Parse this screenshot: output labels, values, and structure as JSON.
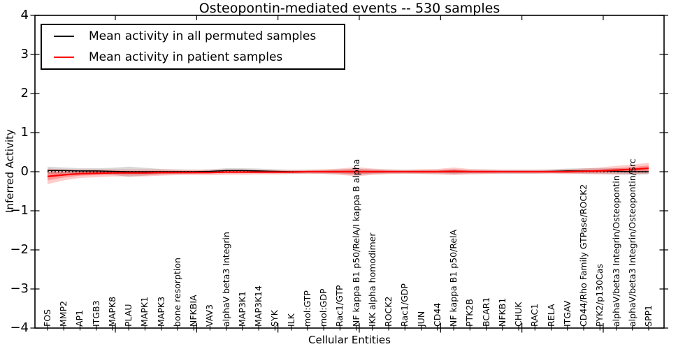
{
  "figure": {
    "title": "Osteopontin-mediated events -- 530 samples",
    "xlabel": "Cellular Entities",
    "ylabel": "Inferred Activity"
  },
  "legend": {
    "items": [
      {
        "label": "Mean activity in all permuted samples",
        "color": "#000000"
      },
      {
        "label": "Mean activity in patient samples",
        "color": "#ff0000"
      }
    ]
  },
  "chart_data": {
    "type": "line",
    "title": "Osteopontin-mediated events -- 530 samples",
    "xlabel": "Cellular Entities",
    "ylabel": "Inferred Activity",
    "ylim": [
      -4,
      4
    ],
    "grid": false,
    "legend_position": "upper left",
    "yticks": [
      {
        "value": 4,
        "label": "4"
      },
      {
        "value": 3,
        "label": "3"
      },
      {
        "value": 2,
        "label": "2"
      },
      {
        "value": 1,
        "label": "1"
      },
      {
        "value": 0,
        "label": "0"
      },
      {
        "value": -1,
        "label": "−1"
      },
      {
        "value": -2,
        "label": "−2"
      },
      {
        "value": -3,
        "label": "−3"
      },
      {
        "value": -4,
        "label": "−4"
      }
    ],
    "categories": [
      "FOS",
      "MMP2",
      "AP1",
      "ITGB3",
      "MAPK8",
      "PLAU",
      "MAPK1",
      "MAPK3",
      "bone resorption",
      "NFKBIA",
      "VAV3",
      "alphaV beta3 Integrin",
      "MAP3K1",
      "MAP3K14",
      "SYK",
      "ILK",
      "mol:GTP",
      "mol:GDP",
      "Rac1/GTP",
      "NF kappa B1 p50/RelA/I kappa B alpha",
      "IKK alpha homodimer",
      "ROCK2",
      "Rac1/GDP",
      "JUN",
      "CD44",
      "NF kappa B1 p50/RelA",
      "PTK2B",
      "BCAR1",
      "NFKB1",
      "CHUK",
      "RAC1",
      "RELA",
      "ITGAV",
      "CD44/Rho Family GTPase/ROCK2",
      "PYK2/p130Cas",
      "alphaV/beta3 Integrin/Osteopontin",
      "alphaV/beta3 Integrin/Osteopontin/Src",
      "SPP1"
    ],
    "reference_line": {
      "y": 0,
      "style": "dotted",
      "color": "#000000"
    },
    "series": [
      {
        "name": "Mean activity in all permuted samples",
        "color": "#000000",
        "band_color": "#000000",
        "band_opacity": 0.15,
        "values": [
          0.03,
          0.03,
          0.02,
          0.02,
          0.01,
          0,
          0,
          0,
          0,
          0,
          0.01,
          0.03,
          0.03,
          0.02,
          0.01,
          0,
          0,
          0,
          0,
          0,
          0,
          0,
          0,
          0,
          0,
          0,
          0,
          0,
          0,
          0,
          0,
          0.01,
          0.02,
          0.02,
          0.02,
          0.01,
          0,
          0
        ],
        "band_half_width": [
          0.1,
          0.08,
          0.07,
          0.07,
          0.09,
          0.13,
          0.1,
          0.07,
          0.06,
          0.05,
          0.05,
          0.06,
          0.06,
          0.06,
          0.05,
          0.05,
          0.05,
          0.05,
          0.06,
          0.08,
          0.06,
          0.05,
          0.05,
          0.05,
          0.05,
          0.06,
          0.05,
          0.05,
          0.05,
          0.05,
          0.05,
          0.05,
          0.06,
          0.07,
          0.07,
          0.08,
          0.08,
          0.07
        ]
      },
      {
        "name": "Mean activity in patient samples",
        "color": "#ff0000",
        "band_color": "#ff0000",
        "band_opacity_outer": 0.2,
        "band_opacity_inner": 0.26,
        "values": [
          -0.12,
          -0.08,
          -0.05,
          -0.04,
          -0.03,
          -0.03,
          -0.03,
          -0.02,
          -0.02,
          -0.02,
          -0.02,
          -0.01,
          -0.01,
          -0.01,
          -0.01,
          -0.01,
          0,
          0,
          0,
          0,
          0,
          0,
          0,
          0,
          0,
          0.01,
          0,
          0,
          0,
          0,
          0,
          0,
          0,
          0.01,
          0.02,
          0.04,
          0.06,
          0.09
        ],
        "band_half_width": [
          0.2,
          0.14,
          0.11,
          0.1,
          0.09,
          0.09,
          0.09,
          0.08,
          0.07,
          0.07,
          0.07,
          0.07,
          0.07,
          0.06,
          0.06,
          0.05,
          0.05,
          0.06,
          0.08,
          0.12,
          0.08,
          0.06,
          0.05,
          0.06,
          0.07,
          0.1,
          0.07,
          0.06,
          0.05,
          0.05,
          0.05,
          0.05,
          0.06,
          0.07,
          0.09,
          0.11,
          0.12,
          0.14
        ],
        "band_inner_half_width": [
          0.1,
          0.07,
          0.05,
          0.05,
          0.04,
          0.04,
          0.04,
          0.04,
          0.03,
          0.03,
          0.03,
          0.03,
          0.03,
          0.03,
          0.03,
          0.02,
          0.02,
          0.03,
          0.04,
          0.06,
          0.04,
          0.03,
          0.02,
          0.03,
          0.03,
          0.05,
          0.03,
          0.03,
          0.02,
          0.02,
          0.02,
          0.02,
          0.03,
          0.03,
          0.04,
          0.05,
          0.06,
          0.07
        ]
      }
    ]
  }
}
